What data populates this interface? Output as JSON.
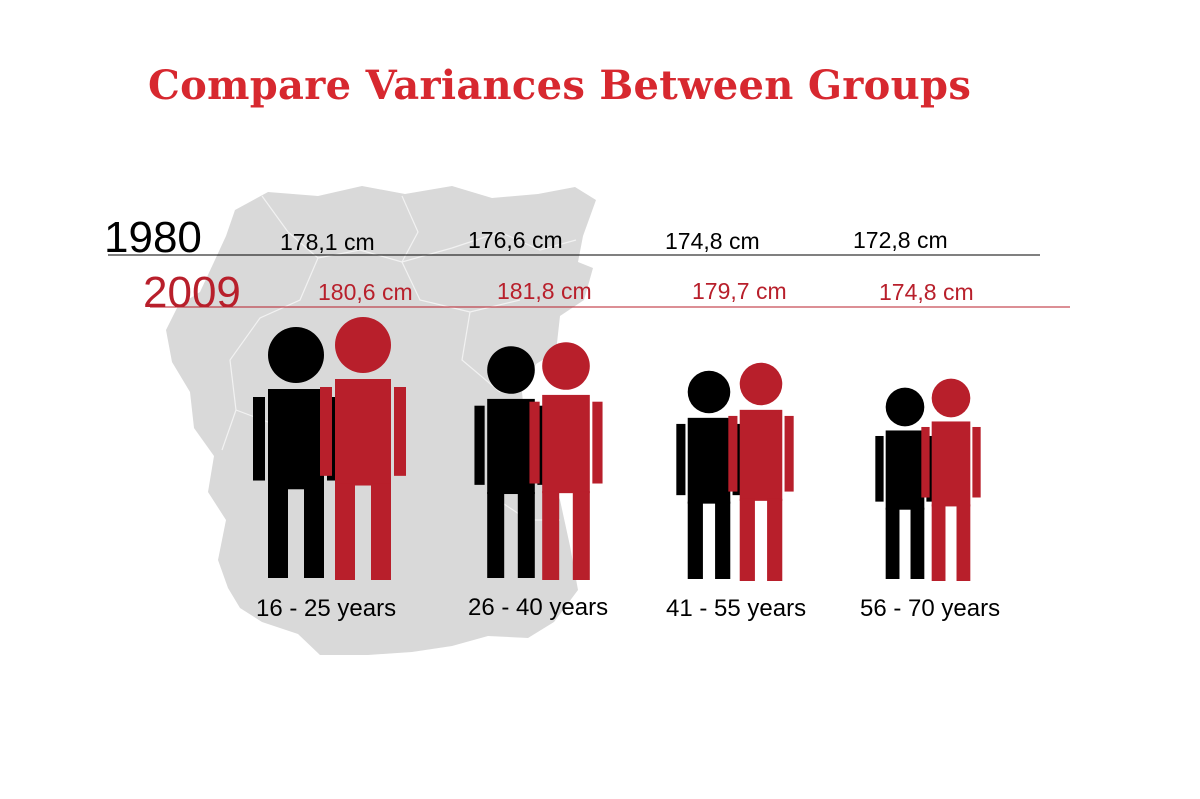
{
  "title": "Compare Variances Between Groups",
  "colors": {
    "title": "#d7282f",
    "y1980": "#000000",
    "y2009": "#b81f2b",
    "map": "#d9d9d9"
  },
  "chart_data": {
    "type": "pictograph",
    "unit": "cm",
    "categories": [
      "16 - 25 years",
      "26 - 40 years",
      "41 - 55 years",
      "56 - 70 years"
    ],
    "series": [
      {
        "name": "1980",
        "color": "#000000",
        "values": [
          178.1,
          176.6,
          174.8,
          172.8
        ],
        "labels": [
          "178,1 cm",
          "176,6 cm",
          "174,8 cm",
          "172,8 cm"
        ]
      },
      {
        "name": "2009",
        "color": "#b81f2b",
        "values": [
          180.6,
          181.8,
          179.7,
          174.8
        ],
        "labels": [
          "180,6 cm",
          "181,8 cm",
          "179,7 cm",
          "174,8 cm"
        ]
      }
    ]
  }
}
